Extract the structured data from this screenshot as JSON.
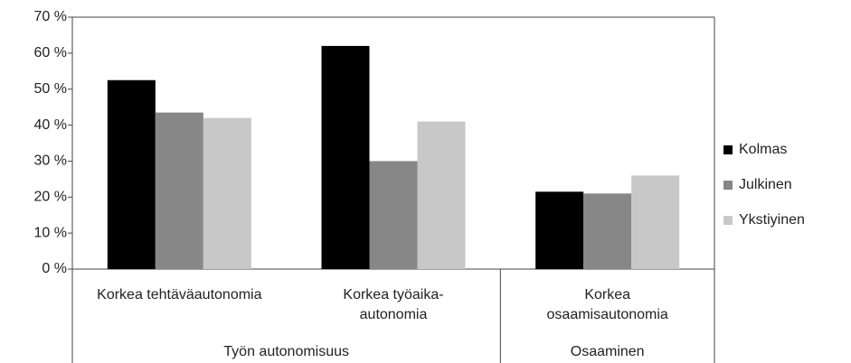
{
  "chart_data": {
    "type": "bar",
    "categories": [
      [
        "Korkea tehtäväautonomia"
      ],
      [
        "Korkea työaika-",
        "autonomia"
      ],
      [
        "Korkea",
        "osaamisautonomia"
      ]
    ],
    "groups": [
      "Työn autonomisuus",
      "Osaaminen"
    ],
    "series": [
      {
        "name": "Kolmas",
        "color": "#000000",
        "values": [
          52.5,
          62,
          21.5
        ]
      },
      {
        "name": "Julkinen",
        "color": "#878787",
        "values": [
          43.5,
          30,
          21
        ]
      },
      {
        "name": "Ykstiyinen",
        "color": "#c8c8c8",
        "values": [
          42,
          41,
          26
        ]
      }
    ],
    "ylim": [
      0,
      70
    ],
    "yticks": [
      {
        "value": 0,
        "label": "0 %"
      },
      {
        "value": 10,
        "label": "10 %"
      },
      {
        "value": 20,
        "label": "20 %"
      },
      {
        "value": 30,
        "label": "30 %"
      },
      {
        "value": 40,
        "label": "40 %"
      },
      {
        "value": 50,
        "label": "50 %"
      },
      {
        "value": 60,
        "label": "60 %"
      },
      {
        "value": 70,
        "label": "70 %"
      }
    ],
    "legend": "right"
  }
}
